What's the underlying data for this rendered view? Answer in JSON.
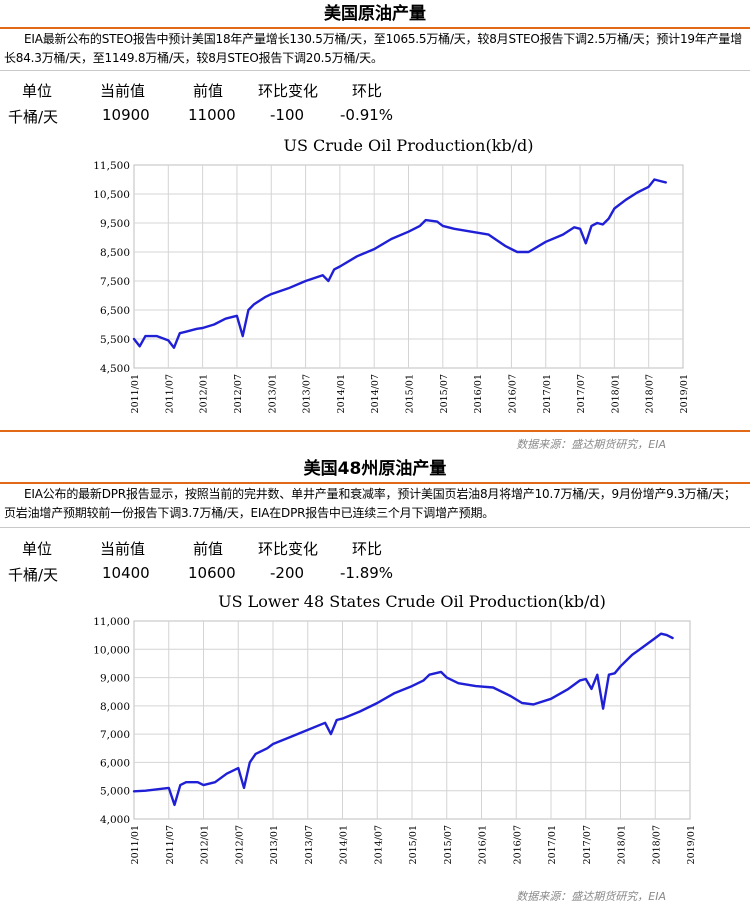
{
  "sections": [
    {
      "title": "美国原油产量",
      "description": "EIA最新公布的STEO报告中预计美国18年产量增长130.5万桶/天，至1065.5万桶/天，较8月STEO报告下调2.5万桶/天；预计19年产量增长84.3万桶/天，至1149.8万桶/天，较8月STEO报告下调20.5万桶/天。",
      "table": {
        "headers": [
          "单位",
          "当前值",
          "前值",
          "环比变化",
          "环比"
        ],
        "row": [
          "千桶/天",
          "10900",
          "11000",
          "-100",
          "-0.91%"
        ]
      },
      "source": "数据来源：盛达期货研究，EIA"
    },
    {
      "title": "美国48州原油产量",
      "description": "EIA公布的最新DPR报告显示，按照当前的完井数、单井产量和衰减率，预计美国页岩油8月将增产10.7万桶/天，9月份增产9.3万桶/天；页岩油增产预期较前一份报告下调3.7万桶/天，EIA在DPR报告中已连续三个月下调增产预期。",
      "table": {
        "headers": [
          "单位",
          "当前值",
          "前值",
          "环比变化",
          "环比"
        ],
        "row": [
          "千桶/天",
          "10400",
          "10600",
          "-200",
          "-1.89%"
        ]
      },
      "source": "数据来源：盛达期货研究，EIA"
    }
  ],
  "chart_data": [
    {
      "type": "line",
      "title": "US Crude Oil Production(kb/d)",
      "xlabel": "",
      "ylabel": "",
      "x_ticks": [
        "2011/01",
        "2011/07",
        "2012/01",
        "2012/07",
        "2013/01",
        "2013/07",
        "2014/01",
        "2014/07",
        "2015/01",
        "2015/07",
        "2016/01",
        "2016/07",
        "2017/01",
        "2017/07",
        "2018/01",
        "2018/07",
        "2019/01"
      ],
      "y_ticks": [
        "4,500",
        "5,500",
        "6,500",
        "7,500",
        "8,500",
        "9,500",
        "10,500",
        "11,500"
      ],
      "ylim": [
        4500,
        11500
      ],
      "xlim": [
        "2011/01",
        "2019/01"
      ],
      "grid": true,
      "color": "#1f1fd6",
      "series": [
        {
          "x": [
            "2011/01",
            "2011/02",
            "2011/03",
            "2011/05",
            "2011/07",
            "2011/08",
            "2011/09",
            "2011/10",
            "2011/12",
            "2012/01",
            "2012/03",
            "2012/05",
            "2012/07",
            "2012/08",
            "2012/09",
            "2012/10",
            "2012/12",
            "2013/01",
            "2013/04",
            "2013/07",
            "2013/10",
            "2013/11",
            "2013/12",
            "2014/01",
            "2014/04",
            "2014/07",
            "2014/10",
            "2015/01",
            "2015/03",
            "2015/04",
            "2015/06",
            "2015/07",
            "2015/09",
            "2015/12",
            "2016/03",
            "2016/06",
            "2016/08",
            "2016/10",
            "2017/01",
            "2017/04",
            "2017/06",
            "2017/07",
            "2017/08",
            "2017/09",
            "2017/10",
            "2017/11",
            "2017/12",
            "2018/01",
            "2018/03",
            "2018/05",
            "2018/07",
            "2018/08",
            "2018/09",
            "2018/10"
          ],
          "y": [
            5500,
            5250,
            5600,
            5600,
            5450,
            5200,
            5700,
            5750,
            5850,
            5880,
            6000,
            6200,
            6300,
            5600,
            6500,
            6700,
            6950,
            7050,
            7250,
            7500,
            7700,
            7500,
            7900,
            8000,
            8350,
            8600,
            8950,
            9200,
            9400,
            9600,
            9550,
            9400,
            9300,
            9200,
            9100,
            8700,
            8500,
            8500,
            8850,
            9100,
            9350,
            9300,
            8800,
            9400,
            9500,
            9450,
            9650,
            10000,
            10300,
            10550,
            10750,
            11000,
            10950,
            10900
          ]
        }
      ]
    },
    {
      "type": "line",
      "title": "US Lower 48 States Crude Oil Production(kb/d)",
      "xlabel": "",
      "ylabel": "",
      "x_ticks": [
        "2011/01",
        "2011/07",
        "2012/01",
        "2012/07",
        "2013/01",
        "2013/07",
        "2014/01",
        "2014/07",
        "2015/01",
        "2015/07",
        "2016/01",
        "2016/07",
        "2017/01",
        "2017/07",
        "2018/01",
        "2018/07",
        "2019/01"
      ],
      "y_ticks": [
        "4,000",
        "5,000",
        "6,000",
        "7,000",
        "8,000",
        "9,000",
        "10,000",
        "11,000"
      ],
      "ylim": [
        4000,
        11000
      ],
      "xlim": [
        "2011/01",
        "2019/01"
      ],
      "grid": true,
      "color": "#1f1fd6",
      "series": [
        {
          "x": [
            "2011/01",
            "2011/03",
            "2011/05",
            "2011/07",
            "2011/08",
            "2011/09",
            "2011/10",
            "2011/12",
            "2012/01",
            "2012/03",
            "2012/05",
            "2012/07",
            "2012/08",
            "2012/09",
            "2012/10",
            "2012/12",
            "2013/01",
            "2013/04",
            "2013/07",
            "2013/10",
            "2013/11",
            "2013/12",
            "2014/01",
            "2014/04",
            "2014/07",
            "2014/10",
            "2015/01",
            "2015/03",
            "2015/04",
            "2015/06",
            "2015/07",
            "2015/09",
            "2015/12",
            "2016/03",
            "2016/06",
            "2016/08",
            "2016/10",
            "2017/01",
            "2017/04",
            "2017/06",
            "2017/07",
            "2017/08",
            "2017/09",
            "2017/10",
            "2017/11",
            "2017/12",
            "2018/01",
            "2018/03",
            "2018/05",
            "2018/07",
            "2018/08",
            "2018/09",
            "2018/10"
          ],
          "y": [
            4980,
            5000,
            5050,
            5100,
            4500,
            5200,
            5300,
            5300,
            5200,
            5300,
            5600,
            5800,
            5100,
            6000,
            6300,
            6500,
            6650,
            6900,
            7150,
            7400,
            7000,
            7500,
            7550,
            7800,
            8100,
            8450,
            8700,
            8900,
            9100,
            9200,
            9000,
            8800,
            8700,
            8650,
            8350,
            8100,
            8050,
            8250,
            8600,
            8900,
            8950,
            8600,
            9100,
            7900,
            9100,
            9150,
            9400,
            9800,
            10100,
            10400,
            10550,
            10500,
            10400
          ]
        }
      ]
    }
  ]
}
